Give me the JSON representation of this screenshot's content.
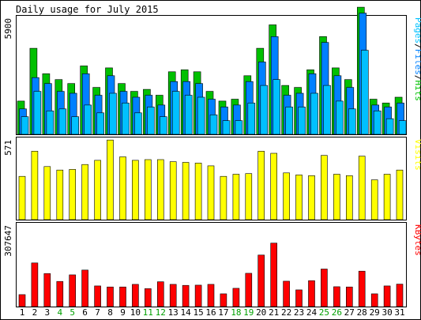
{
  "chart_data": {
    "type": "bar",
    "title": "Daily usage for July 2015",
    "categories": [
      "1",
      "2",
      "3",
      "4",
      "5",
      "6",
      "7",
      "8",
      "9",
      "10",
      "11",
      "12",
      "13",
      "14",
      "15",
      "16",
      "17",
      "18",
      "19",
      "20",
      "21",
      "22",
      "23",
      "24",
      "25",
      "26",
      "27",
      "28",
      "29",
      "30",
      "31"
    ],
    "weekend_days": [
      "4",
      "5",
      "11",
      "12",
      "18",
      "19",
      "25",
      "26"
    ],
    "panels": [
      {
        "name": "hits-panel",
        "ymax": 5900,
        "ylabel_parts": [
          {
            "text": "Pages",
            "color": "#00c0ff"
          },
          {
            "text": "/",
            "color": "#000000"
          },
          {
            "text": "Files",
            "color": "#0080ff"
          },
          {
            "text": "/",
            "color": "#000000"
          },
          {
            "text": "Hits",
            "color": "#00c000"
          }
        ],
        "series": [
          {
            "name": "Hits",
            "color": "#00c000",
            "values": [
              1700,
              4400,
              3100,
              2800,
              2600,
              3500,
              2400,
              3400,
              2600,
              2200,
              2300,
              2000,
              3200,
              3300,
              3200,
              2200,
              1700,
              1800,
              3000,
              4400,
              5600,
              2500,
              2400,
              3300,
              5000,
              3400,
              2800,
              6500,
              1800,
              1600,
              1900
            ]
          },
          {
            "name": "Files",
            "color": "#0080ff",
            "values": [
              1300,
              2900,
              2600,
              2200,
              2100,
              3100,
              2000,
              3000,
              2200,
              1900,
              2000,
              1500,
              2700,
              2700,
              2600,
              1800,
              1400,
              1500,
              2700,
              3700,
              5000,
              2000,
              2100,
              3100,
              4700,
              3000,
              2400,
              6200,
              1500,
              1400,
              1600
            ]
          },
          {
            "name": "Pages",
            "color": "#00c0ff",
            "values": [
              900,
              2200,
              1200,
              1300,
              900,
              1500,
              1100,
              2100,
              1600,
              1100,
              1400,
              900,
              2200,
              2000,
              1900,
              1000,
              700,
              700,
              1600,
              2500,
              2800,
              1400,
              1400,
              2100,
              2500,
              1700,
              1300,
              4300,
              1200,
              800,
              700
            ]
          }
        ]
      },
      {
        "name": "visits-panel",
        "ymax": 571,
        "ylabel_parts": [
          {
            "text": "Visits",
            "color": "#ffff00"
          }
        ],
        "series": [
          {
            "name": "Visits",
            "color": "#ffff00",
            "values": [
              310,
              490,
              380,
              355,
              360,
              395,
              425,
              570,
              450,
              425,
              430,
              430,
              415,
              410,
              405,
              385,
              310,
              325,
              330,
              490,
              475,
              335,
              320,
              315,
              460,
              325,
              315,
              455,
              285,
              325,
              355
            ]
          }
        ]
      },
      {
        "name": "kbytes-panel",
        "ymax": 307647,
        "ylabel_parts": [
          {
            "text": "KBytes",
            "color": "#ff0000"
          }
        ],
        "series": [
          {
            "name": "KBytes",
            "color": "#ff0000",
            "values": [
              45000,
              165000,
              125000,
              95000,
              120000,
              138000,
              78000,
              74000,
              74000,
              84000,
              68000,
              94000,
              84000,
              80000,
              81000,
              84000,
              48000,
              69000,
              126000,
              195000,
              240000,
              96000,
              63000,
              98000,
              142000,
              75000,
              74000,
              134000,
              48000,
              78000,
              85000
            ]
          }
        ]
      }
    ]
  }
}
